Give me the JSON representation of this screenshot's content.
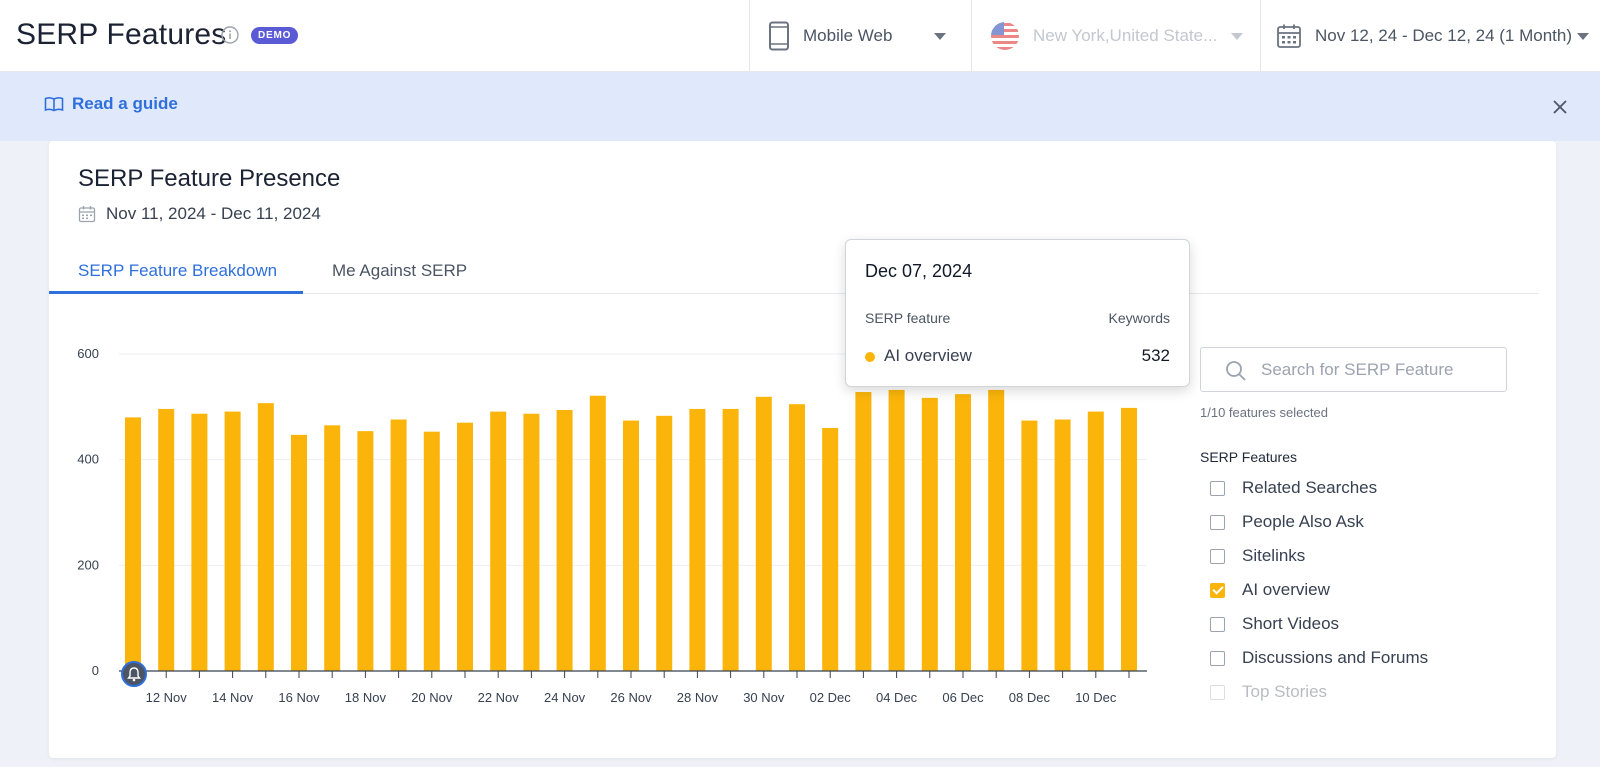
{
  "header": {
    "title": "SERP Features",
    "badge": "DEMO",
    "device": "Mobile Web",
    "location": "New York,United State...",
    "date_range": "Nov 12, 24 - Dec 12, 24 (1 Month)"
  },
  "banner": {
    "guide_label": "Read a guide"
  },
  "card": {
    "title": "SERP Feature Presence",
    "date_range": "Nov 11, 2024 - Dec 11, 2024",
    "tabs": [
      {
        "label": "SERP Feature Breakdown",
        "active": true
      },
      {
        "label": "Me Against SERP",
        "active": false
      }
    ]
  },
  "tooltip": {
    "date": "Dec 07, 2024",
    "col_feature": "SERP feature",
    "col_keywords": "Keywords",
    "feature": "AI overview",
    "value": "532"
  },
  "panel": {
    "search_placeholder": "Search for SERP Feature",
    "selected_count": "1/10 features selected",
    "heading": "SERP Features",
    "features": [
      {
        "label": "Related Searches",
        "checked": false
      },
      {
        "label": "People Also Ask",
        "checked": false
      },
      {
        "label": "Sitelinks",
        "checked": false
      },
      {
        "label": "AI overview",
        "checked": true
      },
      {
        "label": "Short Videos",
        "checked": false
      },
      {
        "label": "Discussions and Forums",
        "checked": false
      },
      {
        "label": "Top Stories",
        "checked": false
      }
    ]
  },
  "colors": {
    "accent": "#2f6fdc",
    "bar": "#fbb50a",
    "badge": "#5b5bd6"
  },
  "chart_data": {
    "type": "bar",
    "categories": [
      "11 Nov",
      "12 Nov",
      "13 Nov",
      "14 Nov",
      "15 Nov",
      "16 Nov",
      "17 Nov",
      "18 Nov",
      "19 Nov",
      "20 Nov",
      "21 Nov",
      "22 Nov",
      "23 Nov",
      "24 Nov",
      "25 Nov",
      "26 Nov",
      "27 Nov",
      "28 Nov",
      "29 Nov",
      "30 Nov",
      "01 Dec",
      "02 Dec",
      "03 Dec",
      "04 Dec",
      "05 Dec",
      "06 Dec",
      "07 Dec",
      "08 Dec",
      "09 Dec",
      "10 Dec",
      "11 Dec"
    ],
    "x_tick_labels": [
      "12 Nov",
      "14 Nov",
      "16 Nov",
      "18 Nov",
      "20 Nov",
      "22 Nov",
      "24 Nov",
      "26 Nov",
      "28 Nov",
      "30 Nov",
      "02 Dec",
      "04 Dec",
      "06 Dec",
      "08 Dec",
      "10 Dec"
    ],
    "series": [
      {
        "name": "AI overview",
        "values": [
          480,
          496,
          487,
          491,
          507,
          447,
          465,
          454,
          476,
          453,
          470,
          491,
          487,
          494,
          521,
          474,
          483,
          496,
          496,
          519,
          505,
          460,
          528,
          532,
          517,
          524,
          532,
          474,
          476,
          491,
          498
        ]
      }
    ],
    "ylim": [
      0,
      600
    ],
    "yticks": [
      0,
      200,
      400,
      600
    ],
    "grid": true
  }
}
